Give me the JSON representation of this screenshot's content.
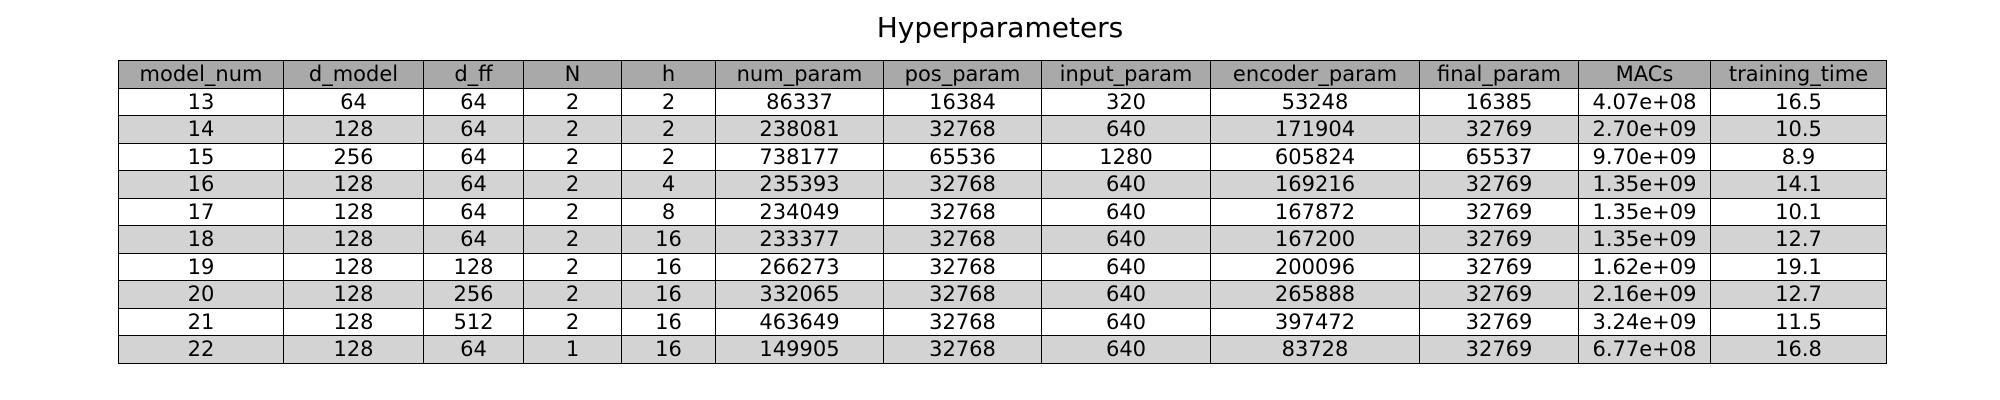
{
  "title": "Hyperparameters",
  "chart_data": {
    "type": "table",
    "title": "Hyperparameters",
    "columns": [
      "model_num",
      "d_model",
      "d_ff",
      "N",
      "h",
      "num_param",
      "pos_param",
      "input_param",
      "encoder_param",
      "final_param",
      "MACs",
      "training_time"
    ],
    "rows": [
      [
        "13",
        "64",
        "64",
        "2",
        "2",
        "86337",
        "16384",
        "320",
        "53248",
        "16385",
        "4.07e+08",
        "16.5"
      ],
      [
        "14",
        "128",
        "64",
        "2",
        "2",
        "238081",
        "32768",
        "640",
        "171904",
        "32769",
        "2.70e+09",
        "10.5"
      ],
      [
        "15",
        "256",
        "64",
        "2",
        "2",
        "738177",
        "65536",
        "1280",
        "605824",
        "65537",
        "9.70e+09",
        "8.9"
      ],
      [
        "16",
        "128",
        "64",
        "2",
        "4",
        "235393",
        "32768",
        "640",
        "169216",
        "32769",
        "1.35e+09",
        "14.1"
      ],
      [
        "17",
        "128",
        "64",
        "2",
        "8",
        "234049",
        "32768",
        "640",
        "167872",
        "32769",
        "1.35e+09",
        "10.1"
      ],
      [
        "18",
        "128",
        "64",
        "2",
        "16",
        "233377",
        "32768",
        "640",
        "167200",
        "32769",
        "1.35e+09",
        "12.7"
      ],
      [
        "19",
        "128",
        "128",
        "2",
        "16",
        "266273",
        "32768",
        "640",
        "200096",
        "32769",
        "1.62e+09",
        "19.1"
      ],
      [
        "20",
        "128",
        "256",
        "2",
        "16",
        "332065",
        "32768",
        "640",
        "265888",
        "32769",
        "2.16e+09",
        "12.7"
      ],
      [
        "21",
        "128",
        "512",
        "2",
        "16",
        "463649",
        "32768",
        "640",
        "397472",
        "32769",
        "3.24e+09",
        "11.5"
      ],
      [
        "22",
        "128",
        "64",
        "1",
        "16",
        "149905",
        "32768",
        "640",
        "83728",
        "32769",
        "6.77e+08",
        "16.8"
      ]
    ],
    "header_color": "#a9a9a9",
    "row_colors": [
      "#ffffff",
      "#d3d3d3"
    ]
  }
}
